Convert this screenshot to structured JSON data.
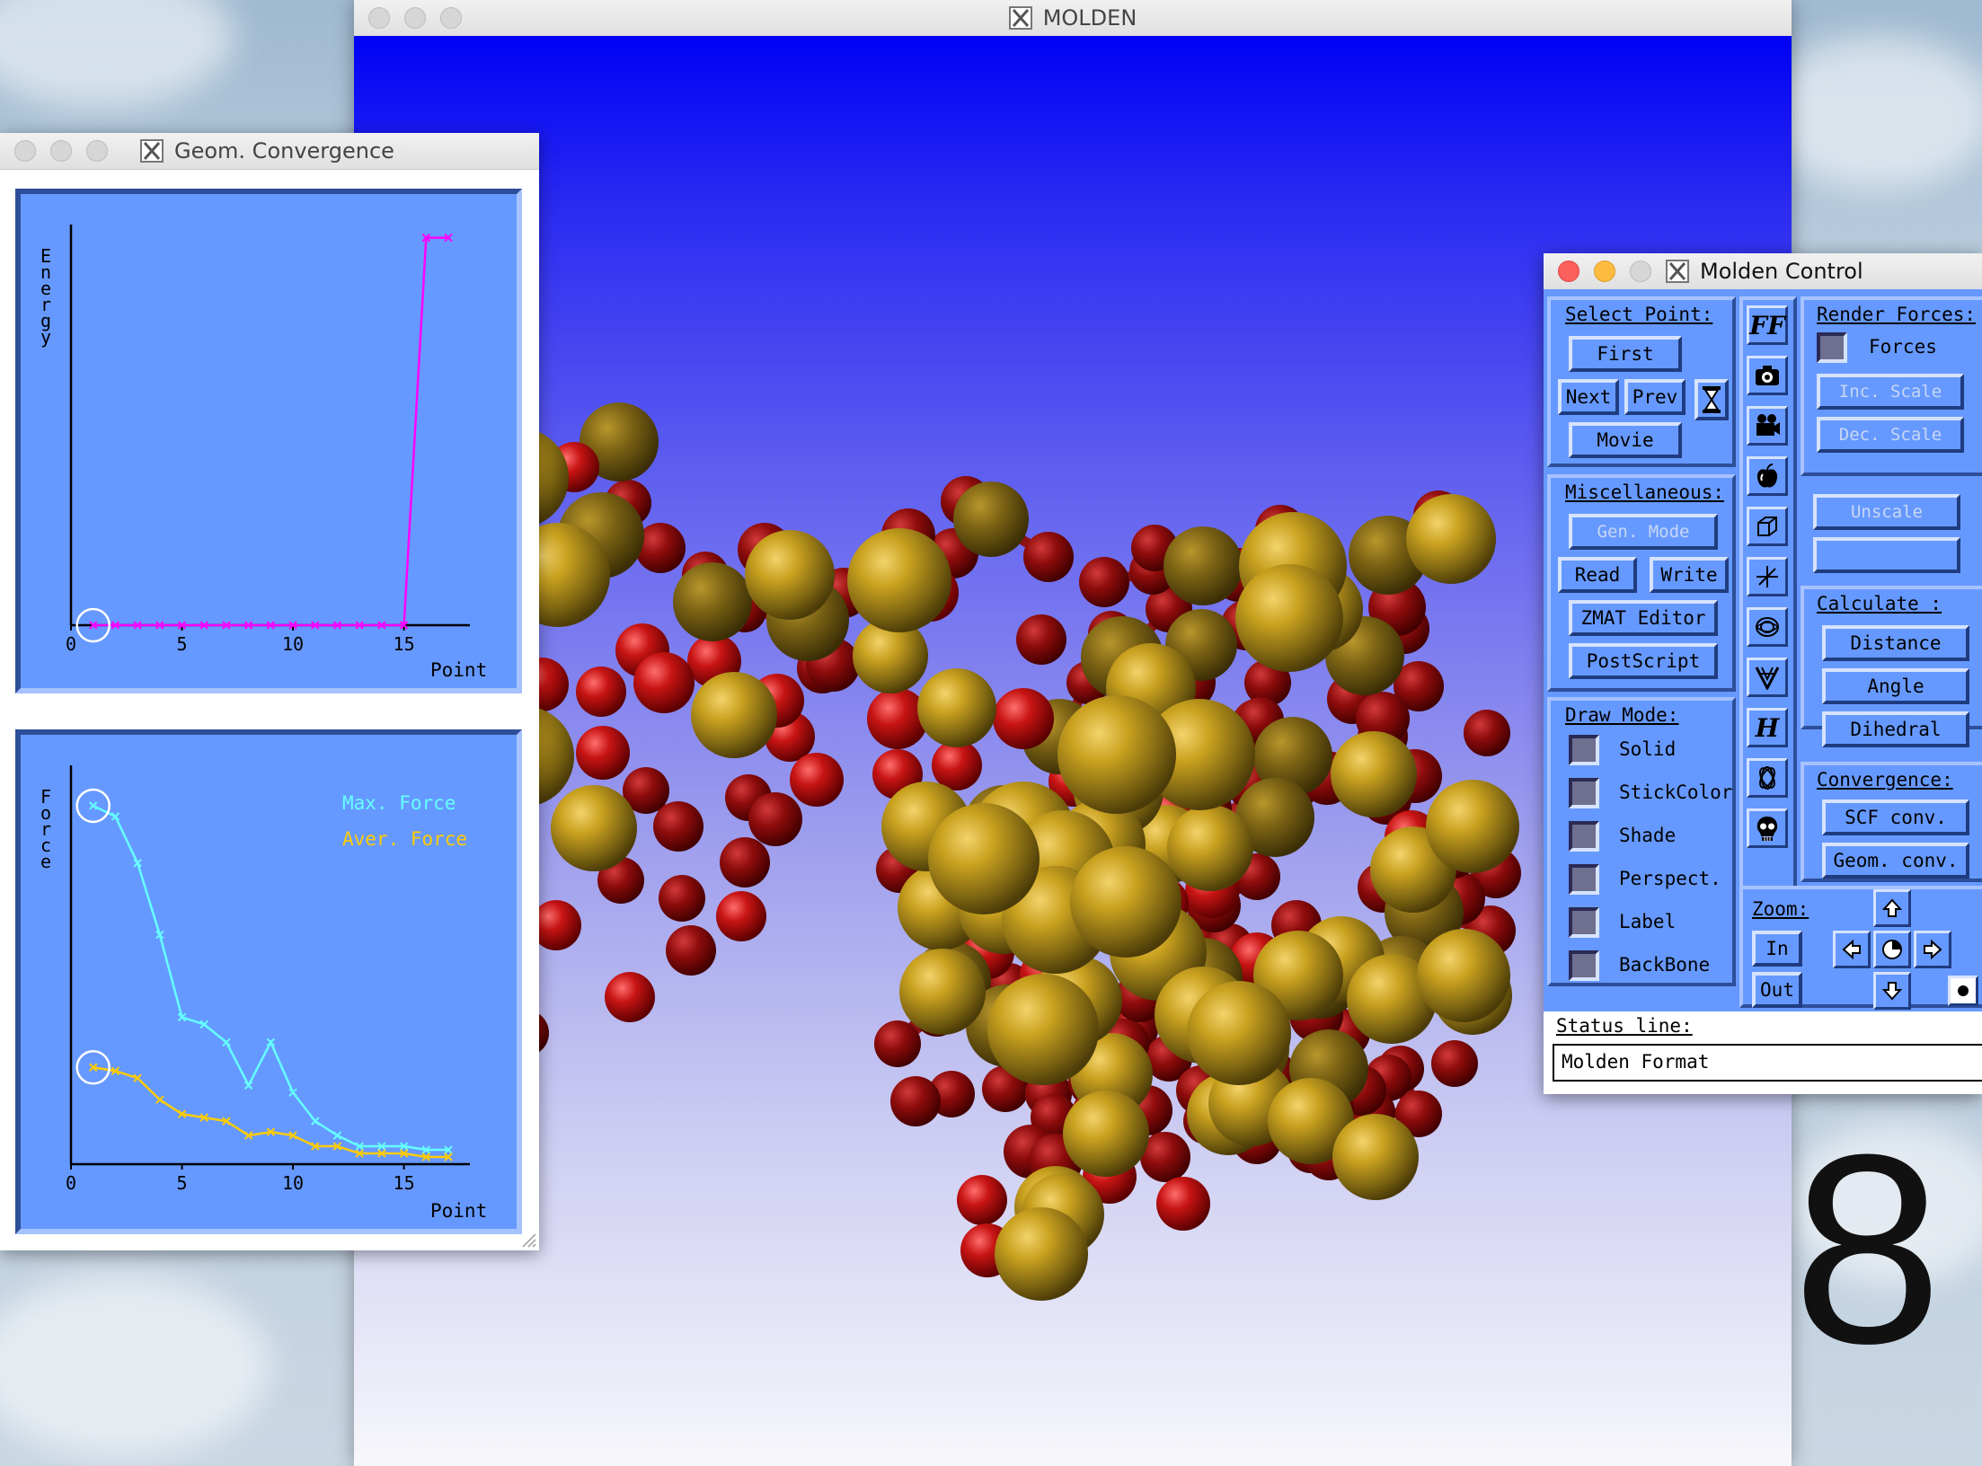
{
  "molden_window": {
    "title": "MOLDEN"
  },
  "geom_window": {
    "title": "Geom. Convergence",
    "energy_plot": {
      "ylabel_letters": [
        "E",
        "n",
        "e",
        "r",
        "g",
        "y"
      ],
      "xlabel": "Point",
      "xticks": [
        "0",
        "5",
        "10",
        "15"
      ]
    },
    "force_plot": {
      "ylabel_letters": [
        "F",
        "o",
        "r",
        "c",
        "e"
      ],
      "xlabel": "Point",
      "xticks": [
        "0",
        "5",
        "10",
        "15"
      ],
      "legend": {
        "max": "Max. Force",
        "aver": "Aver. Force"
      }
    }
  },
  "chart_data": [
    {
      "type": "line",
      "ylabel": "Energy",
      "xlabel": "Point",
      "xlim": [
        0,
        17
      ],
      "x": [
        1,
        2,
        3,
        4,
        5,
        6,
        7,
        8,
        9,
        10,
        11,
        12,
        13,
        14,
        15,
        16,
        17
      ],
      "series": [
        {
          "values": [
            0,
            0,
            0,
            0,
            0,
            0,
            0,
            0,
            0,
            0,
            0,
            0,
            0,
            0,
            0,
            1,
            1
          ]
        }
      ],
      "colors": [
        "#ff00ff"
      ],
      "grid": false
    },
    {
      "type": "line",
      "ylabel": "Force",
      "xlabel": "Point",
      "xlim": [
        0,
        17
      ],
      "x": [
        1,
        2,
        3,
        4,
        5,
        6,
        7,
        8,
        9,
        10,
        11,
        12,
        13,
        14,
        15,
        16,
        17
      ],
      "series": [
        {
          "name": "Max. Force",
          "values": [
            1.0,
            0.97,
            0.84,
            0.64,
            0.41,
            0.39,
            0.34,
            0.22,
            0.34,
            0.2,
            0.12,
            0.08,
            0.05,
            0.05,
            0.05,
            0.04,
            0.04
          ]
        },
        {
          "name": "Aver. Force",
          "values": [
            0.27,
            0.26,
            0.24,
            0.18,
            0.14,
            0.13,
            0.12,
            0.08,
            0.09,
            0.08,
            0.05,
            0.05,
            0.03,
            0.03,
            0.03,
            0.02,
            0.02
          ]
        }
      ],
      "colors": [
        "#66ffff",
        "#ffcc00"
      ],
      "grid": false
    }
  ],
  "control": {
    "title": "Molden Control",
    "select_point": {
      "title": "Select Point:",
      "first": "First",
      "next": "Next",
      "prev": "Prev",
      "movie": "Movie"
    },
    "misc": {
      "title": "Miscellaneous:",
      "gen_mode": "Gen. Mode",
      "read": "Read",
      "write": "Write",
      "zmat": "ZMAT Editor",
      "postscript": "PostScript"
    },
    "draw_mode": {
      "title": "Draw Mode:",
      "items": [
        "Solid",
        "StickColor",
        "Shade",
        "Perspect.",
        "Label",
        "BackBone"
      ]
    },
    "icons": {
      "ff": "FF",
      "h": "H"
    },
    "render_forces": {
      "title": "Render Forces:",
      "forces": "Forces",
      "inc_scale": "Inc. Scale",
      "dec_scale": "Dec. Scale",
      "unscale": "Unscale"
    },
    "calculate": {
      "title": "Calculate :",
      "distance": "Distance",
      "angle": "Angle",
      "dihedral": "Dihedral"
    },
    "convergence": {
      "title": "Convergence:",
      "scf": "SCF conv.",
      "geom": "Geom. conv."
    },
    "zoom": {
      "title": "Zoom:",
      "in": "In",
      "out": "Out"
    },
    "status": {
      "title": "Status line:",
      "text": "Molden Format"
    }
  },
  "desktop": {
    "glyph": "8"
  }
}
